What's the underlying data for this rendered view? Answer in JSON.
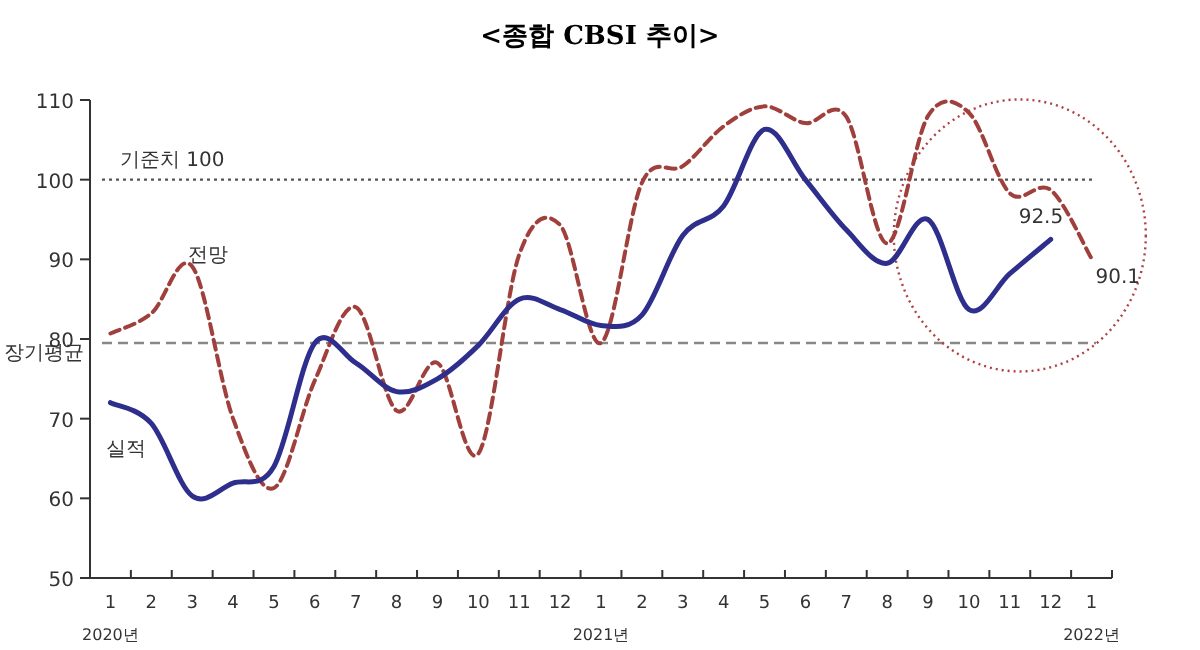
{
  "chart_data": {
    "type": "line",
    "title": "<종합 CBSI 추이>",
    "categories": [
      "1\n2020년",
      "2",
      "3",
      "4",
      "5",
      "6",
      "7",
      "8",
      "9",
      "10",
      "11",
      "12",
      "1\n2021년",
      "2",
      "3",
      "4",
      "5",
      "6",
      "7",
      "8",
      "9",
      "10",
      "11",
      "12",
      "1\n2022년"
    ],
    "ylim": [
      50,
      110
    ],
    "yticks": [
      50,
      60,
      70,
      80,
      90,
      100,
      110
    ],
    "grid": false,
    "legend": false,
    "marker": "none",
    "series": [
      {
        "name": "실적",
        "color": "#2e2e8c",
        "line_style": "solid",
        "values": [
          72,
          69.4,
          60.3,
          61.9,
          64,
          79.5,
          77,
          73.4,
          75,
          79.2,
          85,
          83.7,
          81.7,
          83,
          93,
          96.7,
          106.3,
          100,
          93.7,
          89.5,
          95,
          83.7,
          88.2,
          92.5,
          null
        ],
        "value_labels": [
          null,
          null,
          null,
          null,
          null,
          null,
          null,
          null,
          null,
          null,
          null,
          null,
          null,
          null,
          null,
          null,
          null,
          null,
          null,
          null,
          null,
          null,
          null,
          "92.5",
          null
        ]
      },
      {
        "name": "전망",
        "color": "#a0403c",
        "line_style": "dashed",
        "values": [
          80.7,
          83.2,
          89.1,
          70,
          61.3,
          74.8,
          84,
          71,
          77,
          65.6,
          90.6,
          94.3,
          79.5,
          99.6,
          101.7,
          106.7,
          109.2,
          107.1,
          107.9,
          92,
          108,
          108.4,
          98.3,
          98.7,
          90.1
        ],
        "value_labels": [
          null,
          null,
          null,
          null,
          null,
          null,
          null,
          null,
          null,
          null,
          null,
          null,
          null,
          null,
          null,
          null,
          null,
          null,
          null,
          null,
          null,
          null,
          null,
          null,
          "90.1"
        ]
      }
    ],
    "ref_lines": [
      {
        "axis": "y",
        "value": 100,
        "label": "기준치 100",
        "color": "#555555",
        "line_style": "dotted"
      },
      {
        "axis": "y",
        "value": 79.5,
        "label": "장기평균",
        "color": "#888888",
        "line_style": "dashed"
      }
    ]
  }
}
